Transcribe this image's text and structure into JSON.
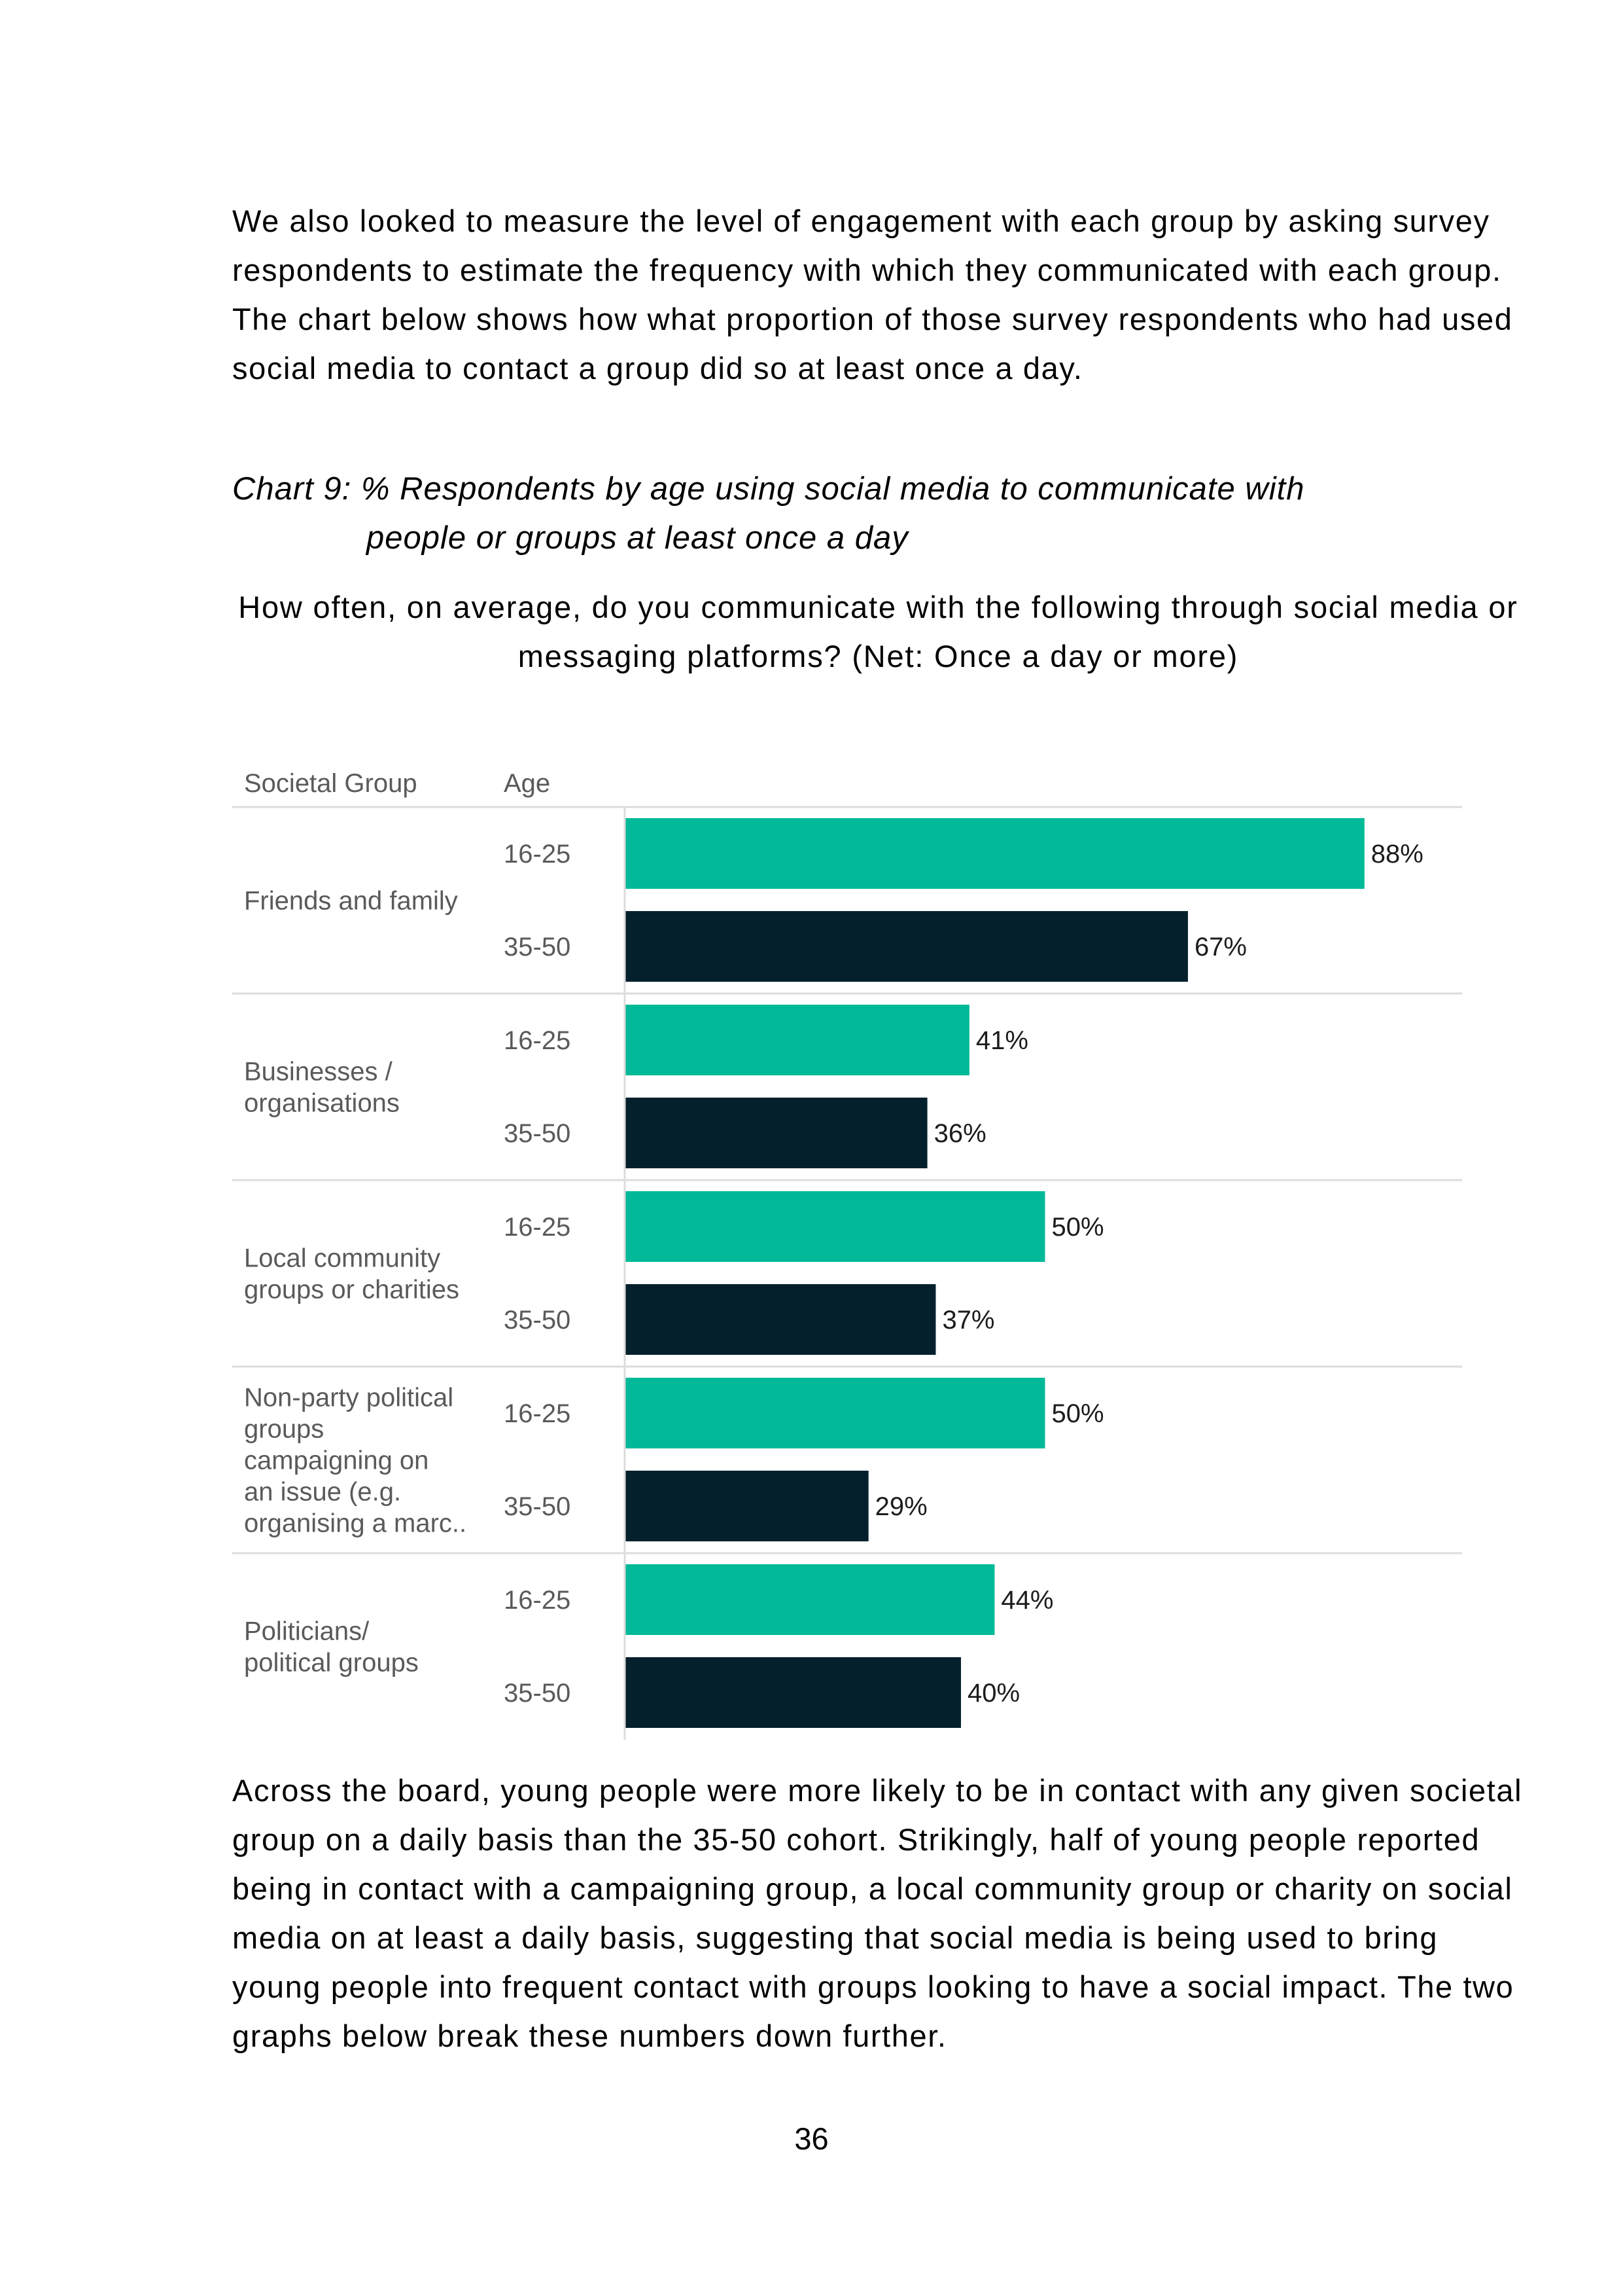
{
  "intro_paragraph": "We also looked to measure the level of engagement with each group by asking survey respondents to estimate the frequency with which they communicated with each group. The chart below shows how what proportion of those survey respondents who had used social media to contact a group did so at least once a day.",
  "chart_caption": {
    "line1": "Chart 9: % Respondents by age using social media to communicate with",
    "line2": "people or groups at least once a day"
  },
  "chart_question": "How often, on average, do you communicate with the following through social media or messaging platforms? (Net: Once a day or more)",
  "chart_data": {
    "type": "bar",
    "orientation": "horizontal",
    "title": "How often, on average, do you communicate with the following through social media or messaging platforms? (Net: Once a day or more)",
    "column_headers": [
      "Societal Group",
      "Age"
    ],
    "xlim": [
      0,
      100
    ],
    "unit": "%",
    "groups": [
      {
        "name": "Friends and family",
        "label_lines": [
          "Friends and family"
        ],
        "bars": [
          {
            "age": "16-25",
            "value": 88,
            "label": "88%"
          },
          {
            "age": "35-50",
            "value": 67,
            "label": "67%"
          }
        ]
      },
      {
        "name": "Businesses / organisations",
        "label_lines": [
          "Businesses /",
          "organisations"
        ],
        "bars": [
          {
            "age": "16-25",
            "value": 41,
            "label": "41%"
          },
          {
            "age": "35-50",
            "value": 36,
            "label": "36%"
          }
        ]
      },
      {
        "name": "Local community groups or charities",
        "label_lines": [
          "Local community",
          "groups or charities"
        ],
        "bars": [
          {
            "age": "16-25",
            "value": 50,
            "label": "50%"
          },
          {
            "age": "35-50",
            "value": 37,
            "label": "37%"
          }
        ]
      },
      {
        "name": "Non-party political groups campaigning on an issue (e.g. organising a marc..",
        "label_lines": [
          " Non-party political",
          "groups",
          "campaigning on",
          "an issue (e.g.",
          "organising a marc.."
        ],
        "bars": [
          {
            "age": "16-25",
            "value": 50,
            "label": "50%"
          },
          {
            "age": "35-50",
            "value": 29,
            "label": "29%"
          }
        ]
      },
      {
        "name": "Politicians/ political groups",
        "label_lines": [
          " Politicians/",
          "political groups"
        ],
        "bars": [
          {
            "age": "16-25",
            "value": 44,
            "label": "44%"
          },
          {
            "age": "35-50",
            "value": 40,
            "label": "40%"
          }
        ]
      }
    ],
    "series_colors": {
      "16-25": "#00b998",
      "35-50": "#04202d"
    },
    "label_color": "#5a5a5a",
    "divider_color": "#dcdcdc"
  },
  "outro_paragraph": "Across the board, young people were more likely to be in contact with any given societal group on a daily basis than the 35-50 cohort. Strikingly, half of young people reported being in contact with a campaigning group, a local community group or charity on social media on at least a daily basis, suggesting that social media is being used to bring young people into frequent contact with groups looking to have a social impact. The two graphs below break these numbers down further.",
  "page_number": "36"
}
